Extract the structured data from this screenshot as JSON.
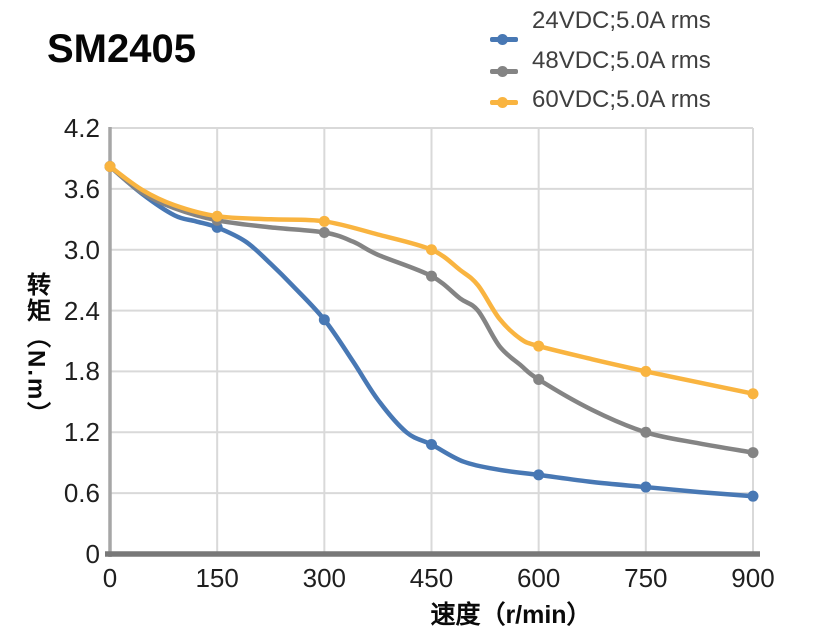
{
  "chart_data": {
    "type": "line",
    "title": "SM2405",
    "xlabel": "速度（r/min）",
    "ylabel": "转矩（N.m）",
    "xlim": [
      0,
      900
    ],
    "ylim": [
      0,
      4.2
    ],
    "x_ticks": [
      "0",
      "150",
      "300",
      "450",
      "600",
      "750",
      "900"
    ],
    "y_ticks": [
      "4.2",
      "3.6",
      "3.0",
      "2.4",
      "1.8",
      "1.2",
      "0.6",
      "0"
    ],
    "grid": true,
    "legend_position": "top-right",
    "x": [
      0,
      150,
      300,
      450,
      600,
      750,
      900
    ],
    "series": [
      {
        "name": "24VDC;5.0A rms",
        "color": "#4878b4",
        "values": [
          3.82,
          3.22,
          2.31,
          1.08,
          0.78,
          0.66,
          0.57
        ],
        "curve": [
          [
            0,
            3.82
          ],
          [
            45,
            3.55
          ],
          [
            90,
            3.34
          ],
          [
            120,
            3.28
          ],
          [
            150,
            3.22
          ],
          [
            190,
            3.08
          ],
          [
            225,
            2.86
          ],
          [
            255,
            2.65
          ],
          [
            300,
            2.31
          ],
          [
            340,
            1.9
          ],
          [
            375,
            1.52
          ],
          [
            415,
            1.2
          ],
          [
            450,
            1.08
          ],
          [
            495,
            0.91
          ],
          [
            545,
            0.83
          ],
          [
            600,
            0.78
          ],
          [
            675,
            0.71
          ],
          [
            750,
            0.66
          ],
          [
            825,
            0.61
          ],
          [
            900,
            0.57
          ]
        ]
      },
      {
        "name": "48VDC;5.0A rms",
        "color": "#848484",
        "values": [
          3.82,
          3.29,
          3.17,
          2.74,
          1.72,
          1.2,
          1.0
        ],
        "curve": [
          [
            0,
            3.82
          ],
          [
            45,
            3.56
          ],
          [
            90,
            3.41
          ],
          [
            150,
            3.29
          ],
          [
            225,
            3.22
          ],
          [
            300,
            3.17
          ],
          [
            340,
            3.08
          ],
          [
            375,
            2.95
          ],
          [
            450,
            2.74
          ],
          [
            490,
            2.52
          ],
          [
            515,
            2.4
          ],
          [
            545,
            2.05
          ],
          [
            575,
            1.86
          ],
          [
            600,
            1.72
          ],
          [
            675,
            1.42
          ],
          [
            750,
            1.2
          ],
          [
            825,
            1.09
          ],
          [
            900,
            1.0
          ]
        ]
      },
      {
        "name": "60VDC;5.0A rms",
        "color": "#f9b440",
        "values": [
          3.82,
          3.33,
          3.28,
          3.0,
          2.05,
          1.8,
          1.58
        ],
        "curve": [
          [
            0,
            3.82
          ],
          [
            45,
            3.59
          ],
          [
            90,
            3.44
          ],
          [
            150,
            3.33
          ],
          [
            225,
            3.3
          ],
          [
            300,
            3.28
          ],
          [
            375,
            3.15
          ],
          [
            450,
            3.0
          ],
          [
            490,
            2.8
          ],
          [
            515,
            2.65
          ],
          [
            545,
            2.32
          ],
          [
            575,
            2.12
          ],
          [
            600,
            2.05
          ],
          [
            675,
            1.92
          ],
          [
            750,
            1.8
          ],
          [
            825,
            1.69
          ],
          [
            900,
            1.58
          ]
        ]
      }
    ],
    "colors": {
      "gridline": "#d9d9d9",
      "y_axis_line": "#a6a6a6",
      "x_axis_line": "#787878",
      "tick_text": "#1f1f1f",
      "legend_text": "#3f3f3f",
      "title_text": "#060606"
    }
  }
}
